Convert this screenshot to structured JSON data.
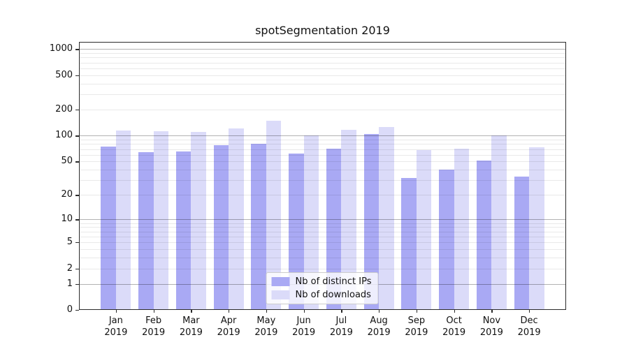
{
  "title": "spotSegmentation 2019",
  "colors": {
    "bar_distinct_ips": "#a9a9f4",
    "bar_downloads": "#dbdbf9",
    "major_grid": "#b4b4b4",
    "minor_grid": "#ebebeb",
    "axis": "#2b2b2b",
    "background": "#ffffff"
  },
  "chart_data": {
    "type": "bar",
    "title": "spotSegmentation 2019",
    "categories": [
      "Jan",
      "Feb",
      "Mar",
      "Apr",
      "May",
      "Jun",
      "Jul",
      "Aug",
      "Sep",
      "Oct",
      "Nov",
      "Dec"
    ],
    "x_year_label": "2019",
    "series": [
      {
        "name": "Nb of distinct IPs",
        "color": "#a9a9f4",
        "values": [
          75,
          64,
          66,
          78,
          81,
          62,
          71,
          105,
          32,
          40,
          51,
          33
        ]
      },
      {
        "name": "Nb of downloads",
        "color": "#dbdbf9",
        "values": [
          115,
          112,
          110,
          122,
          150,
          100,
          117,
          127,
          68,
          71,
          100,
          73
        ]
      }
    ],
    "xlabel": "",
    "ylabel": "",
    "yscale": "log1p",
    "y_ticks": [
      1000,
      500,
      200,
      100,
      50,
      20,
      10,
      5,
      2,
      1,
      0
    ],
    "major_gridline_values": [
      1,
      10,
      100,
      1000
    ],
    "ylim": [
      0,
      1160
    ],
    "grid": true,
    "legend_position": "lower-center"
  },
  "legend": {
    "items": [
      {
        "label": "Nb of distinct IPs"
      },
      {
        "label": "Nb of downloads"
      }
    ]
  }
}
